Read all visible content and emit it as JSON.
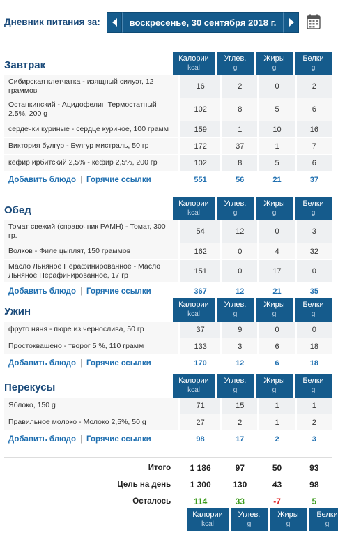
{
  "header": {
    "title": "Дневник питания за:",
    "date": "воскресенье, 30 сентября 2018 г."
  },
  "columns": {
    "kcal": {
      "label": "Калории",
      "unit": "kcal"
    },
    "carbs": {
      "label": "Углев.",
      "unit": "g"
    },
    "fat": {
      "label": "Жиры",
      "unit": "g"
    },
    "protein": {
      "label": "Белки",
      "unit": "g"
    }
  },
  "links": {
    "add": "Добавить блюдо",
    "hot": "Горячие ссылки"
  },
  "meals": {
    "breakfast": {
      "title": "Завтрак",
      "items": [
        {
          "name": "Сибирская клетчатка - изящный силуэт, 12 граммов",
          "kcal": "16",
          "carbs": "2",
          "fat": "0",
          "protein": "2"
        },
        {
          "name": "Останкинский - Ацидофелин Термостатный 2.5%, 200 g",
          "kcal": "102",
          "carbs": "8",
          "fat": "5",
          "protein": "6"
        },
        {
          "name": "сердечки куриные - сердце куриное, 100 грамм",
          "kcal": "159",
          "carbs": "1",
          "fat": "10",
          "protein": "16"
        },
        {
          "name": "Виктория булгур - Булгур мистраль, 50 гр",
          "kcal": "172",
          "carbs": "37",
          "fat": "1",
          "protein": "7"
        },
        {
          "name": "кефир ирбитский 2,5% - кефир 2,5%, 200 гр",
          "kcal": "102",
          "carbs": "8",
          "fat": "5",
          "protein": "6"
        }
      ],
      "totals": {
        "kcal": "551",
        "carbs": "56",
        "fat": "21",
        "protein": "37"
      }
    },
    "lunch": {
      "title": "Обед",
      "items": [
        {
          "name": "Томат свежий (справочник РАМН) - Томат, 300 гр.",
          "kcal": "54",
          "carbs": "12",
          "fat": "0",
          "protein": "3"
        },
        {
          "name": "Волков - Филе цыплят, 150 граммов",
          "kcal": "162",
          "carbs": "0",
          "fat": "4",
          "protein": "32"
        },
        {
          "name": "Масло Льняное Нерафинированное - Масло Льняное Нерафинированное, 17 гр",
          "kcal": "151",
          "carbs": "0",
          "fat": "17",
          "protein": "0"
        }
      ],
      "totals": {
        "kcal": "367",
        "carbs": "12",
        "fat": "21",
        "protein": "35"
      }
    },
    "dinner": {
      "title": "Ужин",
      "items": [
        {
          "name": "фруто няня - пюре из чернослива, 50 гр",
          "kcal": "37",
          "carbs": "9",
          "fat": "0",
          "protein": "0"
        },
        {
          "name": "Простоквашено - творог 5 %, 110 грамм",
          "kcal": "133",
          "carbs": "3",
          "fat": "6",
          "protein": "18"
        }
      ],
      "totals": {
        "kcal": "170",
        "carbs": "12",
        "fat": "6",
        "protein": "18"
      }
    },
    "snacks": {
      "title": "Перекусы",
      "items": [
        {
          "name": "Яблоко, 150 g",
          "kcal": "71",
          "carbs": "15",
          "fat": "1",
          "protein": "1"
        },
        {
          "name": "Правильное молоко - Молоко 2,5%, 50 g",
          "kcal": "27",
          "carbs": "2",
          "fat": "1",
          "protein": "2"
        }
      ],
      "totals": {
        "kcal": "98",
        "carbs": "17",
        "fat": "2",
        "protein": "3"
      }
    }
  },
  "summary": {
    "total": {
      "label": "Итого",
      "kcal": "1 186",
      "carbs": "97",
      "fat": "50",
      "protein": "93"
    },
    "goal": {
      "label": "Цель на день",
      "kcal": "1 300",
      "carbs": "130",
      "fat": "43",
      "protein": "98"
    },
    "remaining": {
      "label": "Осталось",
      "kcal": "114",
      "carbs": "33",
      "fat": "-7",
      "protein": "5"
    }
  },
  "colors": {
    "accent": "#155b8c",
    "link": "#1f6fb0",
    "positive": "#3a9a1a",
    "negative": "#dd2222"
  }
}
